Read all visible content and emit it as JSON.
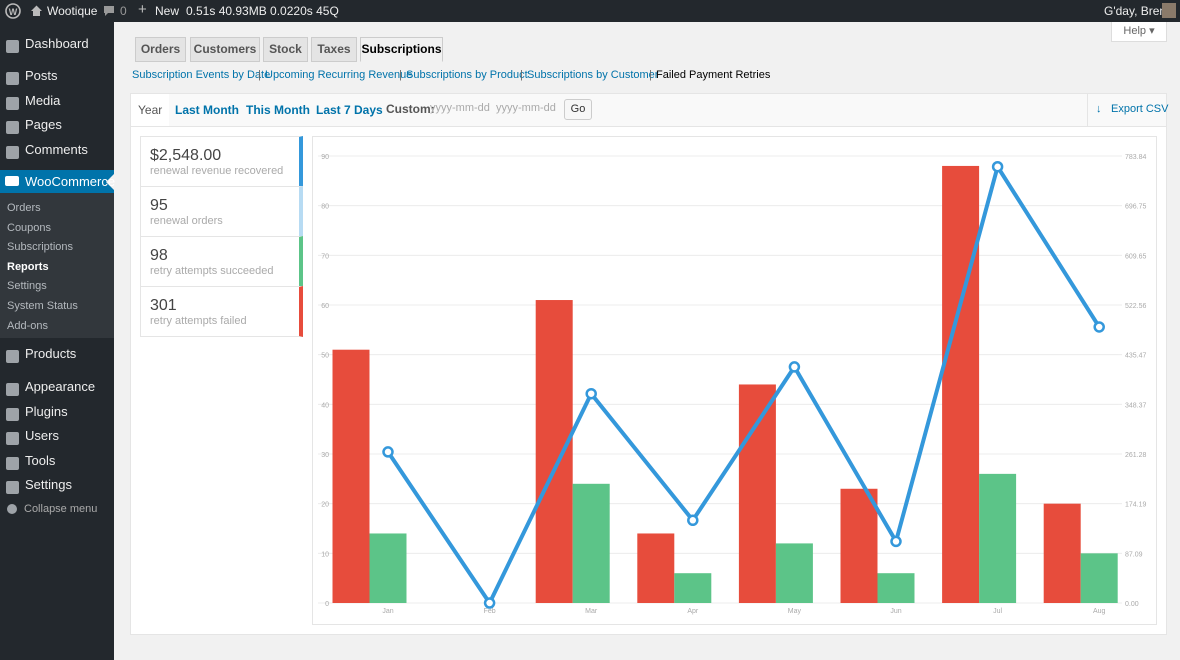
{
  "admin_bar": {
    "site": "Wootique",
    "comments": "0",
    "new": "New",
    "stats": "0.51s 40.93MB 0.0220s 45Q",
    "greeting": "G'day, Brent"
  },
  "menu": {
    "top": [
      "Dashboard",
      "Posts",
      "Media",
      "Pages",
      "Comments"
    ],
    "current": "WooCommerce",
    "submenu": [
      "Orders",
      "Coupons",
      "Subscriptions",
      "Reports",
      "Settings",
      "System Status",
      "Add-ons"
    ],
    "current_sub": 3,
    "bottom": [
      "Products",
      "Appearance",
      "Plugins",
      "Users",
      "Tools",
      "Settings"
    ],
    "collapse": "Collapse menu"
  },
  "tabs": [
    "Orders",
    "Customers",
    "Stock",
    "Taxes",
    "Subscriptions"
  ],
  "active_tab": 4,
  "help": "Help",
  "subnav": [
    "Subscription Events by Date",
    "Upcoming Recurring Revenue",
    "Subscriptions by Product",
    "Subscriptions by Customer",
    "Failed Payment Retries"
  ],
  "active_subnav": 4,
  "ranges": {
    "items": [
      "Year",
      "Last Month",
      "This Month",
      "Last 7 Days"
    ],
    "active": 0,
    "custom": "Custom:",
    "placeholder": "yyyy-mm-dd",
    "go": "Go",
    "export": "Export CSV"
  },
  "summary": [
    {
      "value": "$2,548.00",
      "label": "renewal revenue recovered",
      "color": "#3498db"
    },
    {
      "value": 95,
      "label": "renewal orders",
      "color": "#b7dbf3"
    },
    {
      "value": 98,
      "label": "retry attempts succeeded",
      "color": "#5cc488"
    },
    {
      "value": 301,
      "label": "retry attempts failed",
      "color": "#e74c3c"
    }
  ],
  "chart_data": {
    "type": "bar-line",
    "categories": [
      "Jan",
      "Feb",
      "Mar",
      "Apr",
      "May",
      "Jun",
      "Jul",
      "Aug"
    ],
    "series": [
      {
        "type": "bar",
        "color": "#e74c3c",
        "values": [
          51,
          0,
          61,
          14,
          44,
          23,
          88,
          20
        ]
      },
      {
        "type": "bar",
        "color": "#5cc488",
        "values": [
          14,
          0,
          24,
          6,
          12,
          6,
          26,
          10
        ]
      },
      {
        "type": "line",
        "axis": "y2",
        "color": "#3498db",
        "values": [
          265,
          0,
          367,
          145,
          414,
          108,
          765,
          484
        ]
      }
    ],
    "ylim": [
      0,
      90
    ],
    "yticks": [
      0,
      10,
      20,
      30,
      40,
      50,
      60,
      70,
      80,
      90
    ],
    "y2lim": [
      0,
      783.84
    ],
    "y2ticks": [
      {
        "value": 0,
        "label": "0.00"
      },
      87.09,
      174.19,
      261.28,
      348.37,
      435.47,
      522.56,
      609.65,
      696.75,
      783.84
    ],
    "grid": true
  }
}
